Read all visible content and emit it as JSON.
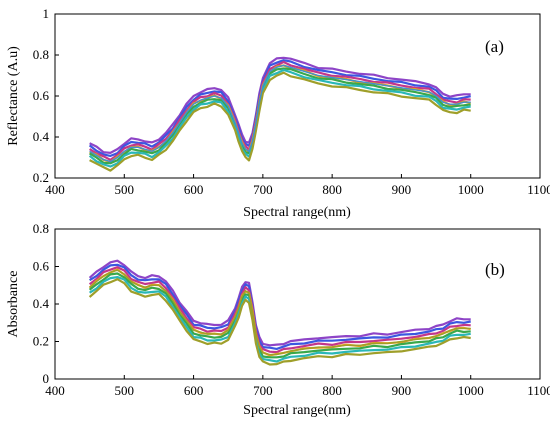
{
  "chart_data": [
    {
      "type": "line",
      "panel_label": "(a)",
      "xlabel": "Spectral range(nm)",
      "ylabel": "Reflectance (A.u)",
      "xlim": [
        400,
        1100
      ],
      "ylim": [
        0.2,
        1
      ],
      "xticks": [
        "400",
        "500",
        "600",
        "700",
        "800",
        "900",
        "1000",
        "1100"
      ],
      "yticks": [
        "0.2",
        "0.4",
        "0.6",
        "0.8",
        "1"
      ],
      "grid": false,
      "legend": "none",
      "bundle_offsets": [
        0.04,
        0.025,
        0.012,
        0.0,
        -0.012,
        -0.025,
        -0.04
      ],
      "x": [
        450,
        460,
        470,
        480,
        490,
        500,
        510,
        520,
        530,
        540,
        550,
        560,
        570,
        580,
        590,
        600,
        610,
        620,
        630,
        640,
        650,
        660,
        665,
        670,
        675,
        680,
        685,
        690,
        695,
        700,
        710,
        720,
        730,
        740,
        760,
        780,
        800,
        820,
        840,
        860,
        880,
        900,
        920,
        940,
        950,
        960,
        970,
        980,
        990,
        1000
      ],
      "series": [
        {
          "values": [
            0.33,
            0.31,
            0.29,
            0.28,
            0.3,
            0.33,
            0.35,
            0.35,
            0.34,
            0.33,
            0.35,
            0.38,
            0.42,
            0.47,
            0.52,
            0.56,
            0.58,
            0.59,
            0.6,
            0.59,
            0.55,
            0.47,
            0.42,
            0.37,
            0.34,
            0.33,
            0.38,
            0.47,
            0.57,
            0.65,
            0.72,
            0.74,
            0.75,
            0.74,
            0.72,
            0.7,
            0.69,
            0.68,
            0.67,
            0.66,
            0.65,
            0.64,
            0.63,
            0.62,
            0.6,
            0.57,
            0.56,
            0.56,
            0.57,
            0.57
          ],
          "color": "#3f8fd2"
        }
      ]
    },
    {
      "type": "line",
      "panel_label": "(b)",
      "xlabel": "Spectral range(nm)",
      "ylabel": "Absorbance",
      "xlim": [
        400,
        1100
      ],
      "ylim": [
        0,
        0.8
      ],
      "xticks": [
        "400",
        "500",
        "600",
        "700",
        "800",
        "900",
        "1000",
        "1100"
      ],
      "yticks": [
        "0",
        "0.2",
        "0.4",
        "0.6",
        "0.8"
      ],
      "grid": false,
      "legend": "none",
      "bundle_offsets": [
        0.05,
        0.033,
        0.016,
        0.0,
        -0.016,
        -0.033,
        -0.05
      ],
      "x": [
        450,
        460,
        470,
        480,
        490,
        500,
        510,
        520,
        530,
        540,
        550,
        560,
        570,
        580,
        590,
        600,
        610,
        620,
        630,
        640,
        650,
        660,
        665,
        670,
        675,
        680,
        685,
        690,
        695,
        700,
        710,
        720,
        730,
        740,
        760,
        780,
        800,
        820,
        840,
        860,
        880,
        900,
        920,
        940,
        950,
        960,
        970,
        980,
        990,
        1000
      ],
      "series": [
        {
          "values": [
            0.49,
            0.52,
            0.55,
            0.57,
            0.58,
            0.56,
            0.52,
            0.5,
            0.49,
            0.5,
            0.5,
            0.47,
            0.42,
            0.36,
            0.31,
            0.26,
            0.25,
            0.24,
            0.24,
            0.24,
            0.26,
            0.33,
            0.38,
            0.44,
            0.47,
            0.46,
            0.36,
            0.24,
            0.17,
            0.14,
            0.13,
            0.13,
            0.14,
            0.15,
            0.16,
            0.17,
            0.17,
            0.18,
            0.18,
            0.19,
            0.19,
            0.2,
            0.21,
            0.22,
            0.23,
            0.24,
            0.26,
            0.27,
            0.27,
            0.27
          ],
          "color": "#9f9f2a"
        }
      ]
    }
  ],
  "colors": {
    "bundle": [
      "#8e44c7",
      "#3b57e0",
      "#c3368a",
      "#e0a020",
      "#3aa84a",
      "#2ab7b7",
      "#9f9f2a"
    ]
  }
}
